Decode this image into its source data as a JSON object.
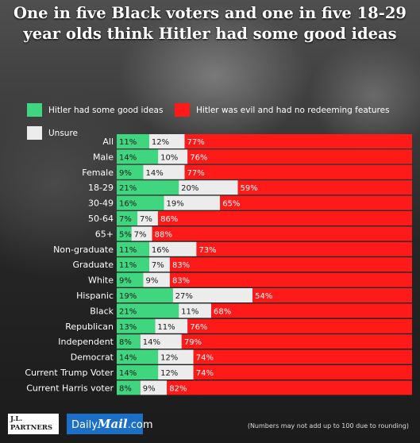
{
  "title": "One in five Black voters and one in five 18-29 year olds think Hitler had some good ideas",
  "colors": {
    "good": "#3fd67f",
    "unsure": "#ececec",
    "evil": "#ff1a1a"
  },
  "legend": [
    {
      "key": "good",
      "label": "Hitler had some good ideas"
    },
    {
      "key": "evil",
      "label": "Hitler was evil and had no redeeming features"
    },
    {
      "key": "unsure",
      "label": "Unsure"
    }
  ],
  "chart_data": {
    "type": "bar",
    "orientation": "horizontal",
    "stacked": true,
    "title": "One in five Black voters and one in five 18-29 year olds think Hitler had some good ideas",
    "categories": [
      "All",
      "Male",
      "Female",
      "18-29",
      "30-49",
      "50-64",
      "65+",
      "Non-graduate",
      "Graduate",
      "White",
      "Hispanic",
      "Black",
      "Republican",
      "Independent",
      "Democrat",
      "Current Trump Voter",
      "Current Harris voter"
    ],
    "series": [
      {
        "name": "Hitler had some good ideas",
        "color": "#3fd67f",
        "values": [
          11,
          14,
          9,
          21,
          16,
          7,
          5,
          11,
          11,
          9,
          19,
          21,
          13,
          8,
          14,
          14,
          8
        ]
      },
      {
        "name": "Unsure",
        "color": "#ececec",
        "values": [
          12,
          10,
          14,
          20,
          19,
          7,
          7,
          16,
          7,
          9,
          27,
          11,
          11,
          14,
          12,
          12,
          9
        ]
      },
      {
        "name": "Hitler was evil and had no redeeming features",
        "color": "#ff1a1a",
        "values": [
          77,
          76,
          77,
          59,
          65,
          86,
          88,
          73,
          83,
          83,
          54,
          68,
          76,
          79,
          74,
          74,
          82
        ]
      }
    ],
    "unit": "%",
    "legend_position": "top",
    "grid": false
  },
  "footer": {
    "logo_jl_line1": "J.L.",
    "logo_jl_line2": "PARTNERS",
    "logo_dm_prefix": "Daily",
    "logo_dm_mid": "Mail",
    "logo_dm_suffix": ".com",
    "note": "(Numbers may not add up to 100 due to rounding)"
  }
}
